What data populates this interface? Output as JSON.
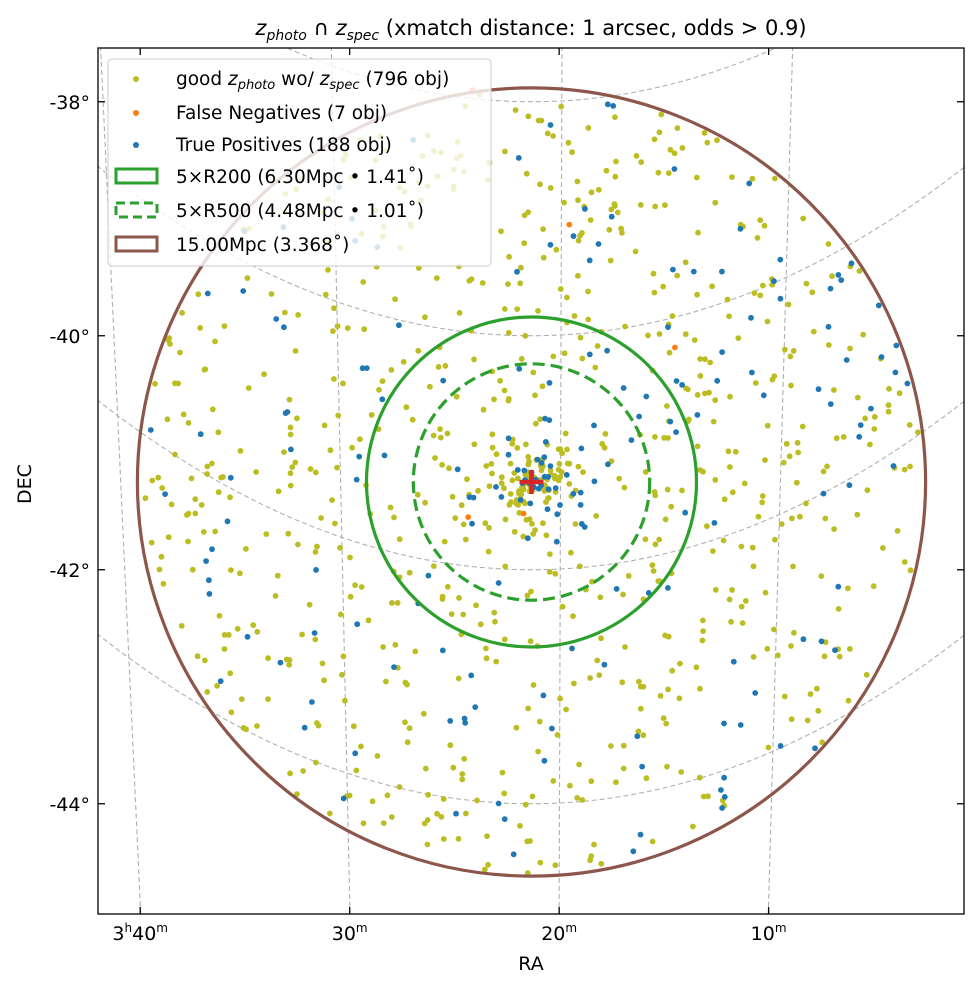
{
  "chart_data": {
    "type": "scatter",
    "title": {
      "z1": "z",
      "z1_sub": "photo",
      "cap": " ∩ ",
      "z2": "z",
      "z2_sub": "spec",
      "rest": " (xmatch distance: 1 arcsec, odds > 0.9)"
    },
    "xlabel": "RA",
    "ylabel": "DEC",
    "xlim_deg": [
      50.8,
      64.5
    ],
    "ylim_deg": [
      -44.9,
      -37.55
    ],
    "x_reversed": true,
    "x_ticks": [
      {
        "ra_deg": 55.0,
        "main": "3",
        "sup1": "h",
        "mid": "40",
        "sup2": "m"
      },
      {
        "ra_deg": 52.5,
        "main": "",
        "sup1": "",
        "mid": "30",
        "sup2": "m"
      },
      {
        "ra_deg": 50.0,
        "main": "",
        "sup1": "",
        "mid": "20",
        "sup2": "m"
      },
      {
        "ra_deg": 47.5,
        "main": "",
        "sup1": "",
        "mid": "10",
        "sup2": "m"
      }
    ],
    "y_ticks": [
      {
        "dec": -38,
        "label": "-38°"
      },
      {
        "dec": -40,
        "label": "-40°"
      },
      {
        "dec": -42,
        "label": "-42°"
      },
      {
        "dec": -44,
        "label": "-44°"
      }
    ],
    "grid": true,
    "center": {
      "ra_deg": 50.33,
      "dec_deg": -41.25
    },
    "circles": [
      {
        "label": "5×R200 (6.30Mpc • 1.41˚)",
        "radius_deg": 1.41,
        "style": "solid",
        "color": "#2ca02c"
      },
      {
        "label": "5×R500 (4.48Mpc • 1.01˚)",
        "radius_deg": 1.01,
        "style": "dashed",
        "color": "#2ca02c"
      },
      {
        "label": "15.00Mpc (3.368˚)",
        "radius_deg": 3.368,
        "style": "solid",
        "color": "#8c564b"
      }
    ],
    "legend_position": "upper-left",
    "series": [
      {
        "name": "good z_photo wo/ z_spec (796 obj)",
        "label_pre": "good ",
        "label_z1": "z",
        "label_sub1": "photo",
        "label_mid": " wo/ ",
        "label_z2": "z",
        "label_sub2": "spec",
        "label_post": " (796 obj)",
        "color": "#bcbd22",
        "count": 796,
        "seed": 11,
        "core_fraction": 0.14
      },
      {
        "name": "False Negatives (7 obj)",
        "label_pre": "False Negatives (7 obj)",
        "color": "#ff7f0e",
        "count": 7,
        "points": [
          [
            50.42,
            -41.52
          ],
          [
            51.05,
            -41.55
          ],
          [
            56.93,
            -43.12
          ],
          [
            55.9,
            -38.5
          ],
          [
            51.0,
            -37.9
          ],
          [
            49.9,
            -39.05
          ],
          [
            48.7,
            -40.1
          ]
        ]
      },
      {
        "name": "True Positives (188 obj)",
        "label_pre": "True Positives (188 obj)",
        "color": "#1f77b4",
        "count": 188,
        "seed": 29,
        "core_fraction": 0.18
      }
    ]
  }
}
